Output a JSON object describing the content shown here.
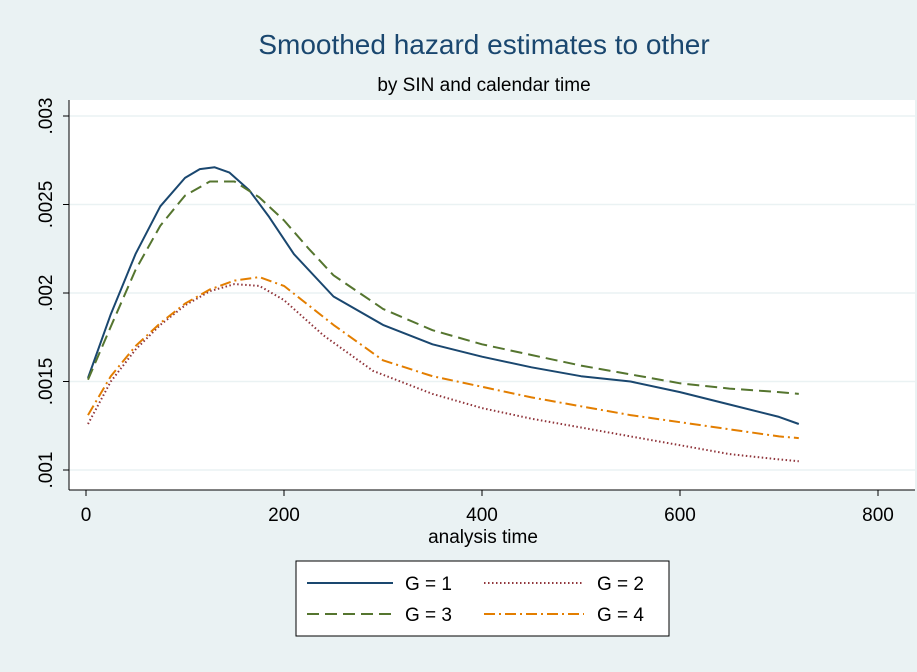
{
  "chart_data": {
    "type": "line",
    "title": "Smoothed hazard estimates to other",
    "subtitle": "by SIN and calendar time",
    "xlabel": "analysis time",
    "ylabel": "",
    "xlim": [
      0,
      800
    ],
    "ylim": [
      0.001,
      0.003
    ],
    "x_ticks": [
      0,
      200,
      400,
      600,
      800
    ],
    "x_tick_labels": [
      "0",
      "200",
      "400",
      "600",
      "800"
    ],
    "y_ticks": [
      0.001,
      0.0015,
      0.002,
      0.0025,
      0.003
    ],
    "y_tick_labels": [
      ".001",
      ".0015",
      ".002",
      ".0025",
      ".003"
    ],
    "grid": true,
    "legend_position": "bottom",
    "series": [
      {
        "name": "G = 1",
        "color": "#1a476f",
        "dash": "solid",
        "x": [
          2,
          25,
          50,
          75,
          100,
          115,
          130,
          145,
          165,
          185,
          210,
          250,
          300,
          350,
          400,
          450,
          500,
          550,
          600,
          650,
          700,
          720
        ],
        "y": [
          0.00152,
          0.00188,
          0.00222,
          0.00249,
          0.00265,
          0.0027,
          0.00271,
          0.00268,
          0.00258,
          0.00243,
          0.00222,
          0.00198,
          0.00182,
          0.00171,
          0.00164,
          0.00158,
          0.00153,
          0.0015,
          0.00144,
          0.00137,
          0.0013,
          0.00126
        ]
      },
      {
        "name": "G = 2",
        "color": "#90353b",
        "dash": "dotted",
        "x": [
          2,
          25,
          50,
          75,
          100,
          125,
          150,
          175,
          200,
          240,
          290,
          350,
          400,
          450,
          500,
          550,
          600,
          650,
          700,
          720
        ],
        "y": [
          0.00126,
          0.0015,
          0.00168,
          0.00182,
          0.00193,
          0.00201,
          0.00205,
          0.00204,
          0.00196,
          0.00176,
          0.00156,
          0.00143,
          0.00135,
          0.00129,
          0.00124,
          0.00119,
          0.00114,
          0.00109,
          0.00106,
          0.00105
        ]
      },
      {
        "name": "G = 3",
        "color": "#55752f",
        "dash": "dashed",
        "x": [
          2,
          25,
          50,
          75,
          100,
          125,
          150,
          175,
          200,
          225,
          250,
          300,
          350,
          400,
          450,
          500,
          550,
          600,
          650,
          700,
          720
        ],
        "y": [
          0.00151,
          0.00181,
          0.00213,
          0.00238,
          0.00255,
          0.00263,
          0.00263,
          0.00254,
          0.00241,
          0.00225,
          0.0021,
          0.00191,
          0.00179,
          0.00171,
          0.00165,
          0.00159,
          0.00154,
          0.00149,
          0.00146,
          0.00144,
          0.00143
        ]
      },
      {
        "name": "G = 4",
        "color": "#e37e00",
        "dash": "dashdot",
        "x": [
          2,
          25,
          50,
          75,
          100,
          125,
          150,
          175,
          200,
          250,
          300,
          350,
          400,
          450,
          500,
          550,
          600,
          650,
          700,
          720
        ],
        "y": [
          0.00131,
          0.00153,
          0.0017,
          0.00183,
          0.00194,
          0.00202,
          0.00207,
          0.00209,
          0.00204,
          0.00182,
          0.00162,
          0.00153,
          0.00147,
          0.00141,
          0.00136,
          0.00131,
          0.00127,
          0.00123,
          0.00119,
          0.00118
        ]
      }
    ]
  }
}
